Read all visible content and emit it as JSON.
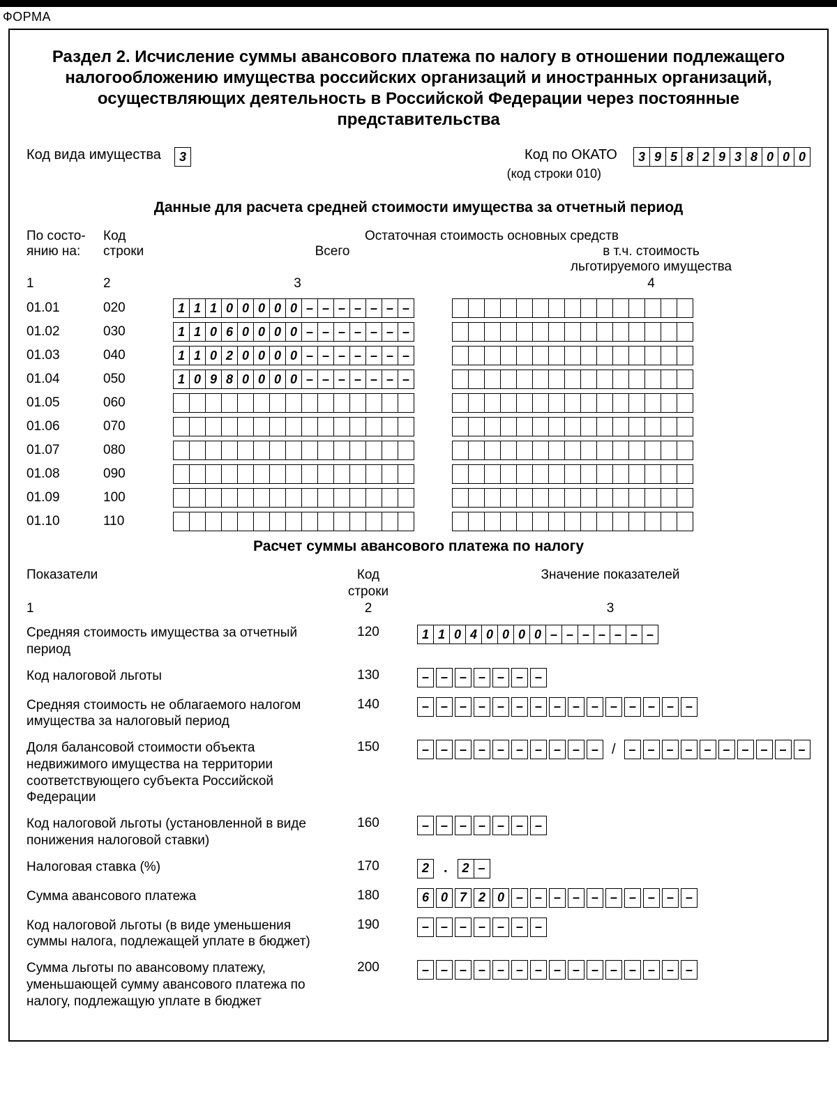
{
  "forma_label": "ФОРМА",
  "title": "Раздел 2. Исчисление суммы авансового платежа по налогу в отношении подлежащего налогообложению имущества российских организаций и иностранных организаций, осуществляющих деятельность в Российской Федерации через постоянные представительства",
  "property_type_label": "Код вида имущества",
  "property_type_code": [
    "3"
  ],
  "okato_label": "Код по ОКАТО",
  "okato_sub": "(код строки 010)",
  "okato": [
    "3",
    "9",
    "5",
    "8",
    "2",
    "9",
    "3",
    "8",
    "0",
    "0",
    "0"
  ],
  "section1_title": "Данные для расчета средней стоимости имущества за отчетный период",
  "col_h": {
    "c1a": "По состо-",
    "c1b": "янию на:",
    "c2a": "Код",
    "c2b": "строки",
    "span": "Остаточная стоимость основных средств",
    "c3": "Всего",
    "c4a": "в т.ч. стоимость",
    "c4b": "льготируемого имущества"
  },
  "colnums": {
    "n1": "1",
    "n2": "2",
    "n3": "3",
    "n4": "4"
  },
  "rows": [
    {
      "date": "01.01",
      "code": "020",
      "v3": [
        "1",
        "1",
        "1",
        "0",
        "0",
        "0",
        "0",
        "0",
        "–",
        "–",
        "–",
        "–",
        "–",
        "–",
        "–"
      ],
      "v4_len": 15
    },
    {
      "date": "01.02",
      "code": "030",
      "v3": [
        "1",
        "1",
        "0",
        "6",
        "0",
        "0",
        "0",
        "0",
        "–",
        "–",
        "–",
        "–",
        "–",
        "–",
        "–"
      ],
      "v4_len": 15
    },
    {
      "date": "01.03",
      "code": "040",
      "v3": [
        "1",
        "1",
        "0",
        "2",
        "0",
        "0",
        "0",
        "0",
        "–",
        "–",
        "–",
        "–",
        "–",
        "–",
        "–"
      ],
      "v4_len": 15
    },
    {
      "date": "01.04",
      "code": "050",
      "v3": [
        "1",
        "0",
        "9",
        "8",
        "0",
        "0",
        "0",
        "0",
        "–",
        "–",
        "–",
        "–",
        "–",
        "–",
        "–"
      ],
      "v4_len": 15
    },
    {
      "date": "01.05",
      "code": "060",
      "v3_len": 15,
      "v4_len": 15
    },
    {
      "date": "01.06",
      "code": "070",
      "v3_len": 15,
      "v4_len": 15
    },
    {
      "date": "01.07",
      "code": "080",
      "v3_len": 15,
      "v4_len": 15
    },
    {
      "date": "01.08",
      "code": "090",
      "v3_len": 15,
      "v4_len": 15
    },
    {
      "date": "01.09",
      "code": "100",
      "v3_len": 15,
      "v4_len": 15
    },
    {
      "date": "01.10",
      "code": "110",
      "v3_len": 15,
      "v4_len": 15
    }
  ],
  "section2_title": "Расчет суммы авансового платежа по налогу",
  "calc_head": {
    "c1": "Показатели",
    "c2a": "Код",
    "c2b": "строки",
    "c3": "Значение показателей"
  },
  "calc_nums": {
    "n1": "1",
    "n2": "2",
    "n3": "3"
  },
  "calc": [
    {
      "label": "Средняя стоимость имущества за отчетный период",
      "code": "120",
      "cells": [
        [
          "1",
          "1",
          "0",
          "4",
          "0",
          "0",
          "0",
          "0",
          "–",
          "–",
          "–",
          "–",
          "–",
          "–",
          "–"
        ]
      ]
    },
    {
      "label": "Код налоговой льготы",
      "code": "130",
      "cells": [
        [
          "–",
          "–",
          "–",
          "–",
          "–",
          "–",
          "–"
        ]
      ],
      "gap": true
    },
    {
      "label": "Средняя стоимость не облагаемого налогом имущества за налоговый период",
      "code": "140",
      "cells": [
        [
          "–",
          "–",
          "–",
          "–",
          "–",
          "–",
          "–",
          "–",
          "–",
          "–",
          "–",
          "–",
          "–",
          "–",
          "–"
        ]
      ],
      "gap": true
    },
    {
      "label": "Доля балансовой стоимости объекта недвижимого имущества на территории соответствующего субъекта Российской Федерации",
      "code": "150",
      "cells": [
        [
          "–",
          "–",
          "–",
          "–",
          "–",
          "–",
          "–",
          "–",
          "–",
          "–"
        ],
        [
          "–",
          "–",
          "–",
          "–",
          "–",
          "–",
          "–",
          "–",
          "–",
          "–"
        ]
      ],
      "gap": true,
      "sep": "/"
    },
    {
      "label": "Код налоговой льготы (установленной в виде понижения налоговой ставки)",
      "code": "160",
      "cells": [
        [
          "–",
          "–",
          "–",
          "–",
          "–",
          "–",
          "–"
        ]
      ],
      "gap": true
    },
    {
      "label": "Налоговая ставка (%)",
      "code": "170",
      "cells": [
        [
          "2"
        ],
        [
          "2",
          "–"
        ]
      ],
      "sep": "."
    },
    {
      "label": "Сумма авансового платежа",
      "code": "180",
      "cells": [
        [
          "6",
          "0",
          "7",
          "2",
          "0",
          "–",
          "–",
          "–",
          "–",
          "–",
          "–",
          "–",
          "–",
          "–",
          "–"
        ]
      ],
      "gap": true
    },
    {
      "label": "Код налоговой льготы (в виде уменьшения суммы налога, подлежащей уплате в бюджет)",
      "code": "190",
      "cells": [
        [
          "–",
          "–",
          "–",
          "–",
          "–",
          "–",
          "–"
        ]
      ],
      "gap": true
    },
    {
      "label": "Сумма льготы по авансовому платежу, уменьшающей сумму авансового платежа по налогу, подлежащую уплате в бюджет",
      "code": "200",
      "cells": [
        [
          "–",
          "–",
          "–",
          "–",
          "–",
          "–",
          "–",
          "–",
          "–",
          "–",
          "–",
          "–",
          "–",
          "–",
          "–"
        ]
      ],
      "gap": true
    }
  ]
}
